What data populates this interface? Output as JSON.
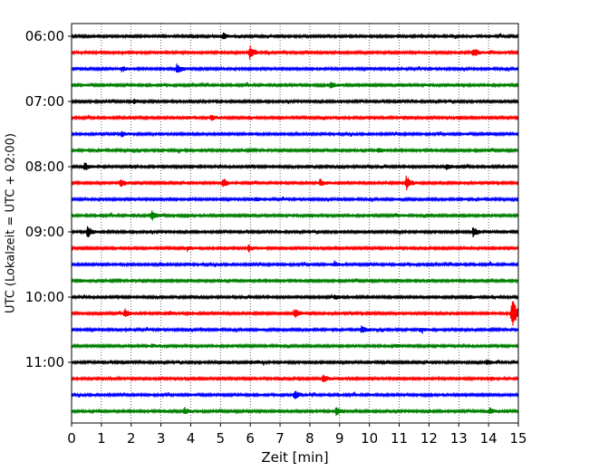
{
  "chart_data": {
    "type": "line",
    "title": "",
    "xlabel": "Zeit  [min]",
    "ylabel": "UTC (Lokalzeit = UTC + 02:00)",
    "xlim": [
      0,
      15
    ],
    "x_ticks": [
      0,
      1,
      2,
      3,
      4,
      5,
      6,
      7,
      8,
      9,
      10,
      11,
      12,
      13,
      14,
      15
    ],
    "x_tick_labels": [
      "0",
      "1",
      "2",
      "3",
      "4",
      "5",
      "6",
      "7",
      "8",
      "9",
      "10",
      "11",
      "12",
      "13",
      "14",
      "15"
    ],
    "y_tick_labels": [
      "06:00",
      "07:00",
      "08:00",
      "09:00",
      "10:00",
      "11:00"
    ],
    "y_tick_rows": [
      0,
      4,
      8,
      12,
      16,
      20
    ],
    "grid": "vertical dotted",
    "row_minutes": 15,
    "color_cycle": [
      "#000000",
      "#ff0000",
      "#0000ff",
      "#008000"
    ],
    "series": [
      {
        "start": "06:00",
        "events": [
          {
            "t": 5.1,
            "amp": 0.35
          }
        ]
      },
      {
        "start": "06:15",
        "events": [
          {
            "t": 6.0,
            "amp": 0.9
          },
          {
            "t": 13.5,
            "amp": 0.6
          }
        ]
      },
      {
        "start": "06:30",
        "events": [
          {
            "t": 1.7,
            "amp": 0.3
          },
          {
            "t": 3.55,
            "amp": 0.7
          }
        ]
      },
      {
        "start": "06:45",
        "events": [
          {
            "t": 8.7,
            "amp": 0.35
          }
        ]
      },
      {
        "start": "07:00",
        "events": [
          {
            "t": 2.1,
            "amp": 0.25
          }
        ]
      },
      {
        "start": "07:15",
        "events": [
          {
            "t": 4.7,
            "amp": 0.35
          },
          {
            "t": 3.9,
            "amp": 0.2
          }
        ]
      },
      {
        "start": "07:30",
        "events": [
          {
            "t": 1.7,
            "amp": 0.3
          }
        ]
      },
      {
        "start": "07:45",
        "events": [
          {
            "t": 10.3,
            "amp": 0.3
          }
        ]
      },
      {
        "start": "08:00",
        "events": [
          {
            "t": 0.45,
            "amp": 0.45
          },
          {
            "t": 12.6,
            "amp": 0.35
          }
        ]
      },
      {
        "start": "08:15",
        "events": [
          {
            "t": 1.65,
            "amp": 0.6
          },
          {
            "t": 5.1,
            "amp": 0.5
          },
          {
            "t": 8.35,
            "amp": 0.45
          },
          {
            "t": 11.25,
            "amp": 0.9
          }
        ]
      },
      {
        "start": "08:30",
        "events": [
          {
            "t": 6.2,
            "amp": 0.2
          }
        ]
      },
      {
        "start": "08:45",
        "events": [
          {
            "t": 2.7,
            "amp": 0.55
          },
          {
            "t": 10.9,
            "amp": 0.2
          }
        ]
      },
      {
        "start": "09:00",
        "events": [
          {
            "t": 0.55,
            "amp": 0.65
          },
          {
            "t": 13.5,
            "amp": 0.6
          }
        ]
      },
      {
        "start": "09:15",
        "events": [
          {
            "t": 5.95,
            "amp": 0.4
          },
          {
            "t": 3.9,
            "amp": 0.2
          }
        ]
      },
      {
        "start": "09:30",
        "events": [
          {
            "t": 8.85,
            "amp": 0.25
          }
        ]
      },
      {
        "start": "09:45",
        "events": [
          {
            "t": 0.3,
            "amp": 0.15
          }
        ]
      },
      {
        "start": "10:00",
        "events": [
          {
            "t": 8.85,
            "amp": 0.3
          },
          {
            "t": 13.4,
            "amp": 0.2
          }
        ]
      },
      {
        "start": "10:15",
        "events": [
          {
            "t": 1.8,
            "amp": 0.45
          },
          {
            "t": 7.5,
            "amp": 0.6
          },
          {
            "t": 14.8,
            "amp": 2.0
          },
          {
            "t": 3.3,
            "amp": 0.2
          }
        ]
      },
      {
        "start": "10:30",
        "events": [
          {
            "t": 9.75,
            "amp": 0.45
          },
          {
            "t": 11.7,
            "amp": 0.2
          }
        ]
      },
      {
        "start": "10:45",
        "events": [
          {
            "t": 2.7,
            "amp": 0.15
          },
          {
            "t": 10.9,
            "amp": 0.15
          }
        ]
      },
      {
        "start": "11:00",
        "events": [
          {
            "t": 13.95,
            "amp": 0.35
          },
          {
            "t": 6.2,
            "amp": 0.2
          }
        ]
      },
      {
        "start": "11:15",
        "events": [
          {
            "t": 8.45,
            "amp": 0.45
          },
          {
            "t": 14.1,
            "amp": 0.2
          }
        ]
      },
      {
        "start": "11:30",
        "events": [
          {
            "t": 7.5,
            "amp": 0.55
          }
        ]
      },
      {
        "start": "11:45",
        "events": [
          {
            "t": 3.8,
            "amp": 0.4
          },
          {
            "t": 8.9,
            "amp": 0.5
          },
          {
            "t": 14.05,
            "amp": 0.35
          }
        ]
      }
    ]
  }
}
